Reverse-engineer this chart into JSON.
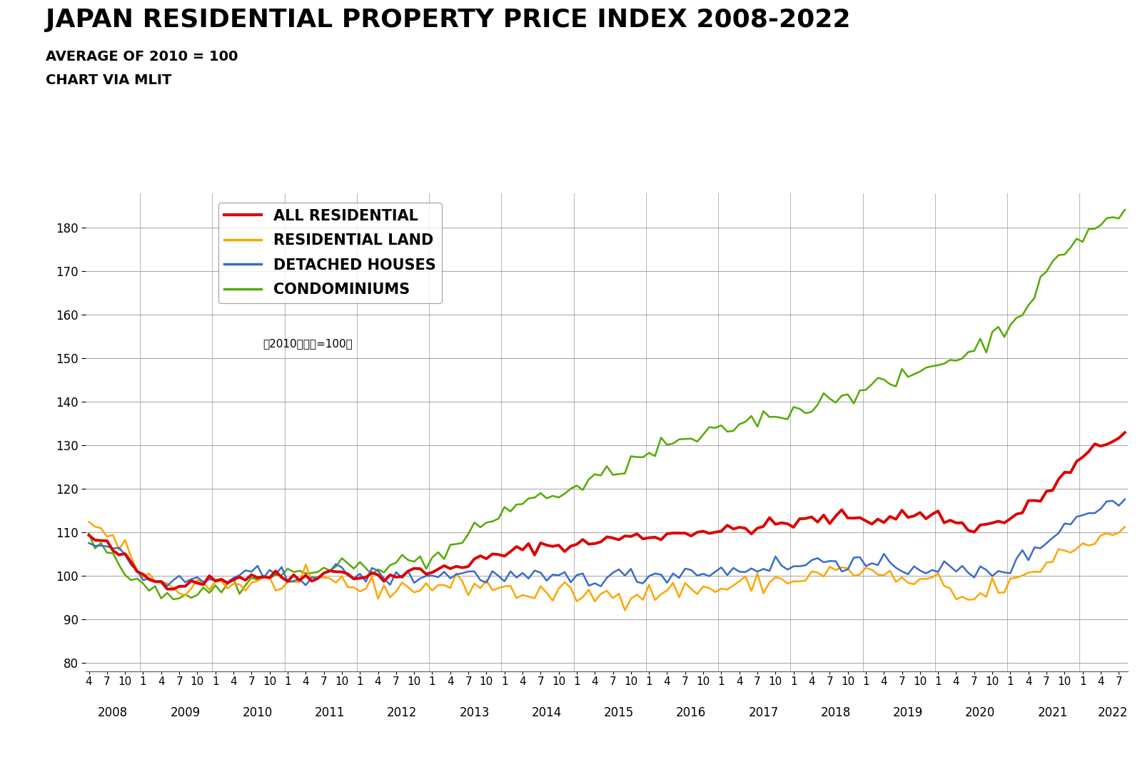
{
  "title": "JAPAN RESIDENTIAL PROPERTY PRICE INDEX 2008-2022",
  "subtitle1": "AVERAGE OF 2010 = 100",
  "subtitle2": "CHART VIA MLIT",
  "annotation": "（2010年平均=100）",
  "ylim": [
    78,
    188
  ],
  "yticks": [
    80,
    90,
    100,
    110,
    120,
    130,
    140,
    150,
    160,
    170,
    180
  ],
  "line_colors": {
    "all_residential": "#dd0000",
    "residential_land": "#ffa500",
    "detached_houses": "#3a6cc8",
    "condominiums": "#55aa00"
  },
  "line_widths": {
    "all_residential": 2.8,
    "residential_land": 1.8,
    "detached_houses": 1.8,
    "condominiums": 1.8
  },
  "legend_labels": [
    "ALL RESIDENTIAL",
    "RESIDENTIAL LAND",
    "DETACHED HOUSES",
    "CONDOMINIUMS"
  ],
  "grid_color": "#aaaaaa",
  "title_fontsize": 26,
  "subtitle_fontsize": 14,
  "tick_fontsize": 12,
  "legend_fontsize": 15
}
